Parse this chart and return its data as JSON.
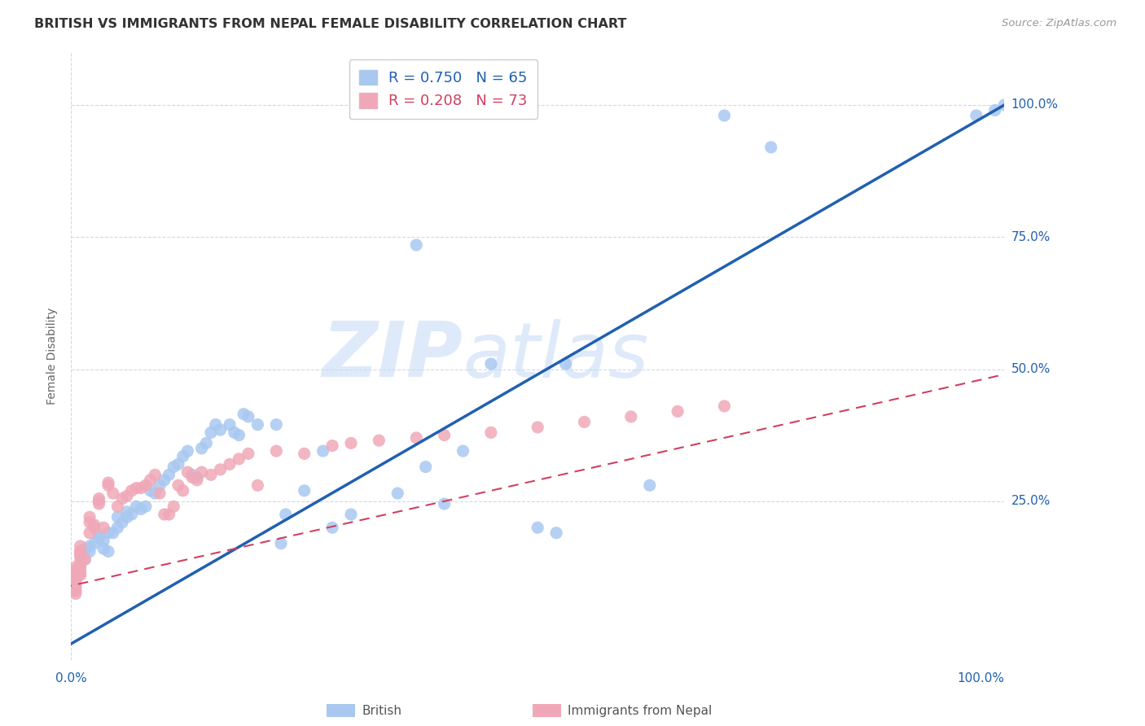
{
  "title": "BRITISH VS IMMIGRANTS FROM NEPAL FEMALE DISABILITY CORRELATION CHART",
  "source": "Source: ZipAtlas.com",
  "ylabel": "Female Disability",
  "ytick_labels": [
    "100.0%",
    "75.0%",
    "50.0%",
    "25.0%"
  ],
  "ytick_positions": [
    1.0,
    0.75,
    0.5,
    0.25
  ],
  "xlim": [
    0.0,
    1.0
  ],
  "ylim": [
    -0.05,
    1.1
  ],
  "legend_blue_r": "R = 0.750",
  "legend_blue_n": "N = 65",
  "legend_pink_r": "R = 0.208",
  "legend_pink_n": "N = 73",
  "blue_color": "#a8c8f0",
  "blue_line_color": "#2060b0",
  "pink_color": "#f0a8b8",
  "pink_line_color": "#d04060",
  "watermark_zip": "ZIP",
  "watermark_atlas": "atlas",
  "blue_points_x": [
    0.37,
    0.015,
    0.015,
    0.02,
    0.02,
    0.025,
    0.03,
    0.03,
    0.035,
    0.035,
    0.04,
    0.04,
    0.045,
    0.05,
    0.05,
    0.055,
    0.06,
    0.06,
    0.065,
    0.07,
    0.075,
    0.08,
    0.085,
    0.09,
    0.095,
    0.1,
    0.105,
    0.11,
    0.115,
    0.12,
    0.125,
    0.13,
    0.135,
    0.14,
    0.145,
    0.15,
    0.155,
    0.16,
    0.17,
    0.175,
    0.18,
    0.185,
    0.19,
    0.2,
    0.22,
    0.225,
    0.23,
    0.25,
    0.27,
    0.28,
    0.3,
    0.35,
    0.38,
    0.4,
    0.42,
    0.45,
    0.5,
    0.52,
    0.53,
    0.62,
    0.7,
    0.75,
    0.97,
    0.99,
    1.0
  ],
  "blue_points_y": [
    0.735,
    0.16,
    0.14,
    0.165,
    0.155,
    0.17,
    0.18,
    0.185,
    0.175,
    0.16,
    0.19,
    0.155,
    0.19,
    0.2,
    0.22,
    0.21,
    0.22,
    0.23,
    0.225,
    0.24,
    0.235,
    0.24,
    0.27,
    0.265,
    0.28,
    0.29,
    0.3,
    0.315,
    0.32,
    0.335,
    0.345,
    0.3,
    0.295,
    0.35,
    0.36,
    0.38,
    0.395,
    0.385,
    0.395,
    0.38,
    0.375,
    0.415,
    0.41,
    0.395,
    0.395,
    0.17,
    0.225,
    0.27,
    0.345,
    0.2,
    0.225,
    0.265,
    0.315,
    0.245,
    0.345,
    0.51,
    0.2,
    0.19,
    0.51,
    0.28,
    0.98,
    0.92,
    0.98,
    0.99,
    1.0
  ],
  "pink_points_x": [
    0.005,
    0.005,
    0.005,
    0.005,
    0.005,
    0.005,
    0.005,
    0.005,
    0.005,
    0.005,
    0.005,
    0.01,
    0.01,
    0.01,
    0.01,
    0.01,
    0.01,
    0.01,
    0.01,
    0.01,
    0.01,
    0.01,
    0.015,
    0.02,
    0.02,
    0.02,
    0.025,
    0.025,
    0.03,
    0.03,
    0.03,
    0.035,
    0.04,
    0.04,
    0.045,
    0.05,
    0.055,
    0.06,
    0.065,
    0.07,
    0.075,
    0.08,
    0.085,
    0.09,
    0.095,
    0.1,
    0.105,
    0.11,
    0.115,
    0.12,
    0.125,
    0.13,
    0.135,
    0.14,
    0.15,
    0.16,
    0.17,
    0.18,
    0.19,
    0.2,
    0.22,
    0.25,
    0.28,
    0.3,
    0.33,
    0.37,
    0.4,
    0.45,
    0.5,
    0.55,
    0.6,
    0.65,
    0.7
  ],
  "pink_points_y": [
    0.09,
    0.1,
    0.11,
    0.12,
    0.085,
    0.095,
    0.105,
    0.115,
    0.08,
    0.125,
    0.075,
    0.13,
    0.145,
    0.15,
    0.125,
    0.135,
    0.12,
    0.155,
    0.11,
    0.165,
    0.115,
    0.155,
    0.14,
    0.19,
    0.21,
    0.22,
    0.205,
    0.2,
    0.25,
    0.245,
    0.255,
    0.2,
    0.28,
    0.285,
    0.265,
    0.24,
    0.255,
    0.26,
    0.27,
    0.275,
    0.275,
    0.28,
    0.29,
    0.3,
    0.265,
    0.225,
    0.225,
    0.24,
    0.28,
    0.27,
    0.305,
    0.295,
    0.29,
    0.305,
    0.3,
    0.31,
    0.32,
    0.33,
    0.34,
    0.28,
    0.345,
    0.34,
    0.355,
    0.36,
    0.365,
    0.37,
    0.375,
    0.38,
    0.39,
    0.4,
    0.41,
    0.42,
    0.43
  ]
}
